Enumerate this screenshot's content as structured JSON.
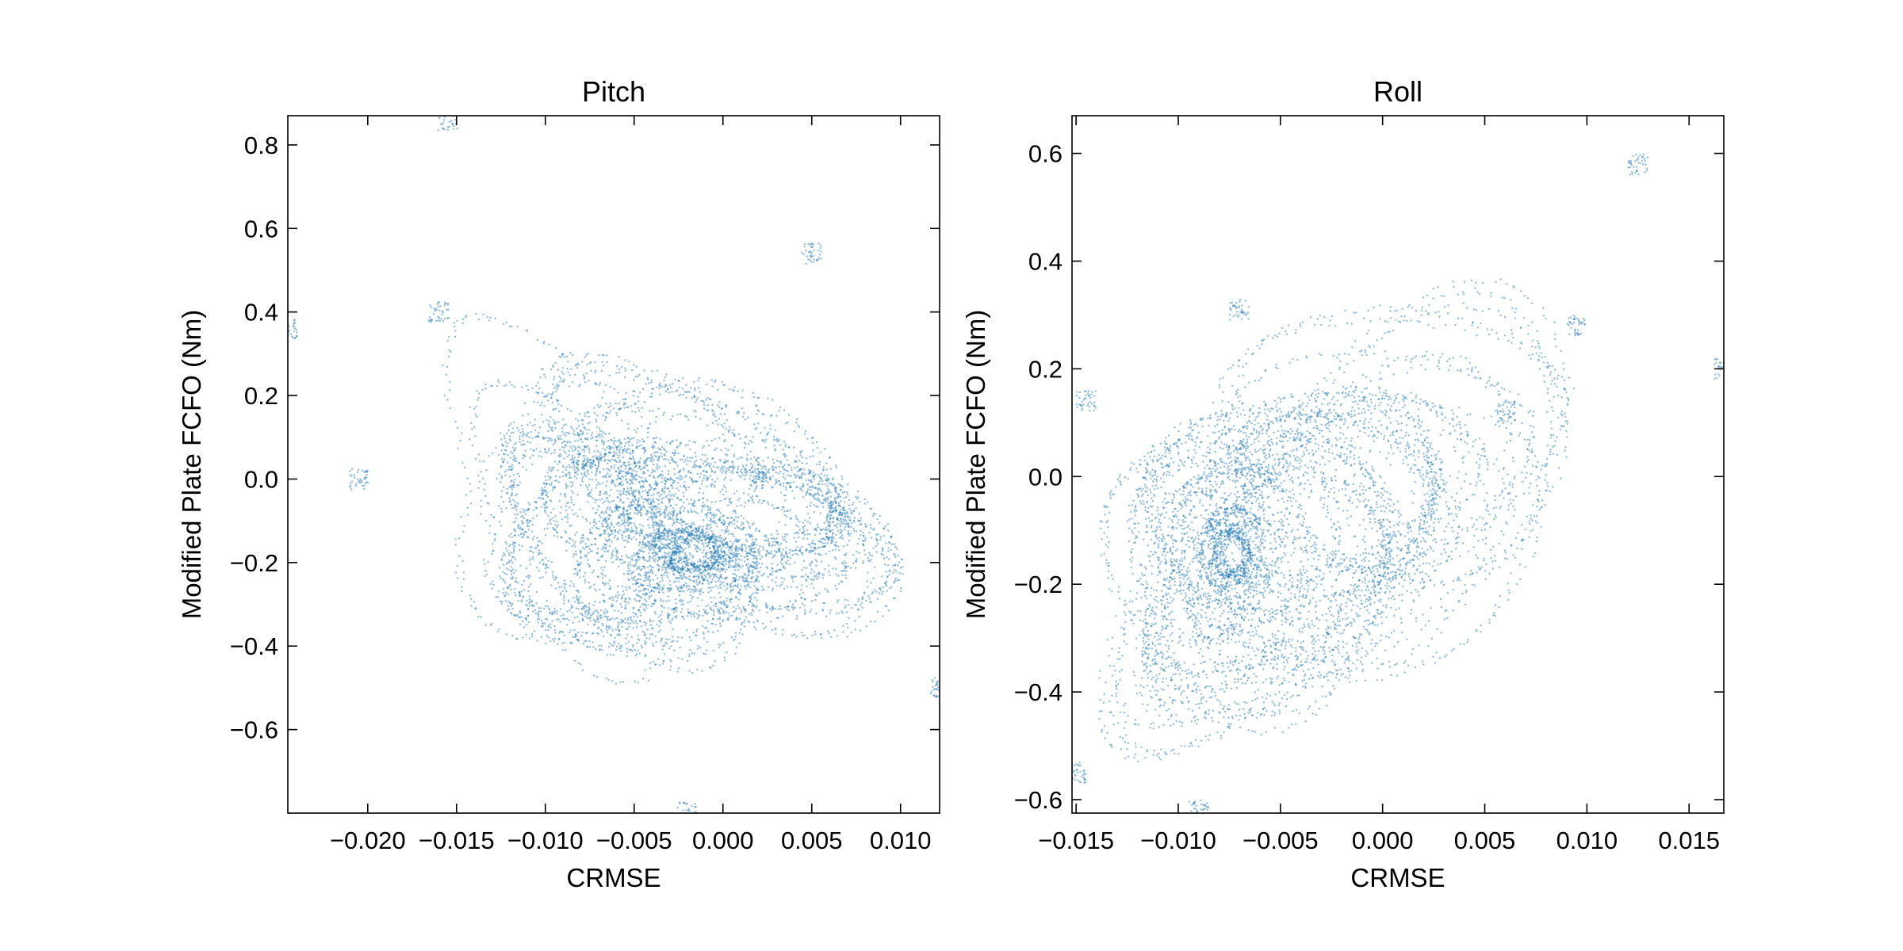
{
  "chart_data": [
    {
      "type": "scatter",
      "title": "Pitch",
      "xlabel": "CRMSE",
      "ylabel": "Modified Plate FCFO (Nm)",
      "xlim": [
        -0.0245,
        0.0122
      ],
      "ylim": [
        -0.8,
        0.87
      ],
      "xticks": [
        -0.02,
        -0.015,
        -0.01,
        -0.005,
        0.0,
        0.005,
        0.01
      ],
      "xtick_labels": [
        "−0.020",
        "−0.015",
        "−0.010",
        "−0.005",
        "0.000",
        "0.005",
        "0.010"
      ],
      "yticks": [
        0.8,
        0.6,
        0.4,
        0.2,
        0.0,
        -0.2,
        -0.4,
        -0.6
      ],
      "ytick_labels": [
        "0.8",
        "0.6",
        "0.4",
        "0.2",
        "0.0",
        "−0.2",
        "−0.4",
        "−0.6"
      ],
      "grid": false,
      "color": "#1f77b4",
      "point_alpha": 0.45,
      "series": [
        {
          "center": [
            -0.004,
            -0.05
          ],
          "x_amplitude": 0.009,
          "y_amplitude": 0.3,
          "correlation": -0.45,
          "num_points": 6500,
          "extreme_points": [
            {
              "x": -0.0245,
              "y": 0.36
            },
            {
              "x": -0.0205,
              "y": 0.0
            },
            {
              "x": -0.0155,
              "y": 0.86
            },
            {
              "x": -0.016,
              "y": 0.4
            },
            {
              "x": 0.0122,
              "y": -0.5
            },
            {
              "x": 0.005,
              "y": 0.54
            },
            {
              "x": -0.002,
              "y": -0.8
            },
            {
              "x": 0.002,
              "y": 0.0
            }
          ]
        }
      ]
    },
    {
      "type": "scatter",
      "title": "Roll",
      "xlabel": "CRMSE",
      "ylabel": "Modified Plate FCFO (Nm)",
      "xlim": [
        -0.0152,
        0.0167
      ],
      "ylim": [
        -0.625,
        0.67
      ],
      "xticks": [
        -0.015,
        -0.01,
        -0.005,
        0.0,
        0.005,
        0.01,
        0.015
      ],
      "xtick_labels": [
        "−0.015",
        "−0.010",
        "−0.005",
        "0.000",
        "0.005",
        "0.010",
        "0.015"
      ],
      "yticks": [
        0.6,
        0.4,
        0.2,
        0.0,
        -0.2,
        -0.4,
        -0.6
      ],
      "ytick_labels": [
        "0.6",
        "0.4",
        "0.2",
        "0.0",
        "−0.2",
        "−0.4",
        "−0.6"
      ],
      "grid": false,
      "color": "#1f77b4",
      "point_alpha": 0.45,
      "series": [
        {
          "center": [
            -0.003,
            -0.05
          ],
          "x_amplitude": 0.0085,
          "y_amplitude": 0.25,
          "correlation": 0.35,
          "num_points": 6500,
          "extreme_points": [
            {
              "x": -0.015,
              "y": -0.55
            },
            {
              "x": -0.0145,
              "y": 0.14
            },
            {
              "x": 0.0125,
              "y": 0.58
            },
            {
              "x": 0.0167,
              "y": 0.2
            },
            {
              "x": 0.0095,
              "y": 0.28
            },
            {
              "x": 0.006,
              "y": 0.12
            },
            {
              "x": -0.009,
              "y": -0.62
            },
            {
              "x": -0.007,
              "y": 0.31
            }
          ]
        }
      ]
    }
  ]
}
